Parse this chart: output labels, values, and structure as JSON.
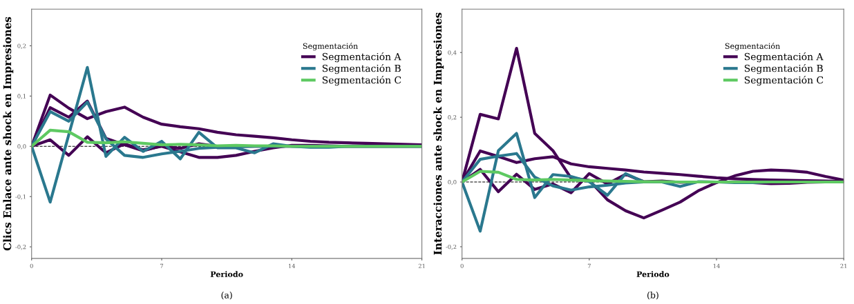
{
  "chart_data": [
    {
      "type": "line",
      "ylabel": "Clics Enlace ante shock en Impresiones",
      "xlabel": "Periodo",
      "legend_title": "Segmentación",
      "legend": "top right",
      "grid": false,
      "marker": "none",
      "line_style": "solid",
      "x": [
        0,
        1,
        2,
        3,
        4,
        5,
        6,
        7,
        8,
        9,
        10,
        11,
        12,
        13,
        14,
        15,
        16,
        17,
        18,
        19,
        20,
        21
      ],
      "xlim": [
        0,
        21
      ],
      "xticks": [
        0,
        7,
        14,
        21
      ],
      "ylim": [
        -0.223,
        0.273
      ],
      "yticks": [
        {
          "value": -0.2,
          "label": "-0,2"
        },
        {
          "value": -0.1,
          "label": "-0,1"
        },
        {
          "value": 0,
          "label": "0,0"
        },
        {
          "value": 0.1,
          "label": "0,1"
        },
        {
          "value": 0.2,
          "label": "0,2"
        }
      ],
      "ref_lines": [
        {
          "axis": "y",
          "value": 0,
          "color": "#000000",
          "line_style": "dashed"
        }
      ],
      "annotations": [
        "(a)"
      ],
      "series": [
        {
          "name": "Segmentación A",
          "color": "#440154",
          "values": [
            0,
            0.102,
            0.076,
            0.055,
            0.069,
            0.078,
            0.058,
            0.044,
            0.039,
            0.035,
            0.028,
            0.023,
            0.02,
            0.017,
            0.013,
            0.01,
            0.008,
            0.007,
            0.006,
            0.005,
            0.004,
            0.003
          ]
        },
        {
          "color": "#440154",
          "values": [
            0,
            0.077,
            0.058,
            0.09,
            0.016,
            0.003,
            -0.009,
            0.001,
            -0.004,
            0.005,
            0,
            0,
            0,
            0,
            0,
            0,
            0,
            0,
            0,
            0,
            0,
            0
          ]
        },
        {
          "color": "#440154",
          "values": [
            0,
            0.013,
            -0.018,
            0.019,
            -0.013,
            0.005,
            -0.007,
            0,
            -0.011,
            -0.022,
            -0.022,
            -0.018,
            -0.01,
            -0.003,
            0.002,
            0.002,
            0.001,
            0,
            0,
            0,
            0,
            0
          ]
        },
        {
          "name": "Segmentación B",
          "color": "#2a788e",
          "values": [
            0,
            -0.111,
            0.023,
            0.157,
            -0.02,
            0.018,
            -0.01,
            0.01,
            -0.025,
            0.028,
            -0.003,
            -0.003,
            -0.013,
            0.005,
            0,
            -0.002,
            -0.002,
            0,
            0,
            0,
            0,
            0
          ]
        },
        {
          "color": "#2a788e",
          "values": [
            0,
            0.069,
            0.05,
            0.088,
            0.015,
            -0.018,
            -0.022,
            -0.015,
            -0.01,
            -0.004,
            -0.002,
            -0.001,
            0,
            0,
            0,
            0,
            0,
            0,
            0,
            0,
            0,
            0
          ]
        },
        {
          "name": "Segmentación C",
          "color": "#5ec962",
          "values": [
            0,
            0.032,
            0.029,
            0.008,
            0.007,
            0.009,
            0.006,
            0.003,
            0.004,
            0.003,
            0.001,
            0.002,
            0.001,
            0.001,
            0,
            0,
            0,
            0,
            0,
            0,
            0,
            0
          ]
        }
      ]
    },
    {
      "type": "line",
      "ylabel": "Interacciones ante shock en Impresiones",
      "xlabel": "Periodo",
      "legend_title": "Segmentación",
      "legend": "top right",
      "grid": false,
      "marker": "none",
      "line_style": "solid",
      "x": [
        0,
        1,
        2,
        3,
        4,
        5,
        6,
        7,
        8,
        9,
        10,
        11,
        12,
        13,
        14,
        15,
        16,
        17,
        18,
        19,
        20,
        21
      ],
      "xlim": [
        0,
        21
      ],
      "xticks": [
        0,
        7,
        14,
        21
      ],
      "ylim": [
        -0.236,
        0.534
      ],
      "yticks": [
        {
          "value": -0.2,
          "label": "-0,2"
        },
        {
          "value": 0,
          "label": "0,0"
        },
        {
          "value": 0.2,
          "label": "0,2"
        },
        {
          "value": 0.4,
          "label": "0,4"
        }
      ],
      "ref_lines": [
        {
          "axis": "y",
          "value": 0,
          "color": "#000000",
          "line_style": "dashed"
        }
      ],
      "annotations": [
        "(b)"
      ],
      "series": [
        {
          "name": "Segmentación A",
          "color": "#440154",
          "values": [
            0,
            0.209,
            0.195,
            0.413,
            0.15,
            0.097,
            0.012,
            0.005,
            -0.055,
            -0.089,
            -0.111,
            -0.087,
            -0.062,
            -0.027,
            -0.002,
            0.019,
            0.033,
            0.037,
            0.035,
            0.03,
            0.017,
            0.006
          ]
        },
        {
          "color": "#440154",
          "values": [
            0,
            0.096,
            0.079,
            0.06,
            0.072,
            0.078,
            0.056,
            0.047,
            0.042,
            0.037,
            0.031,
            0.027,
            0.023,
            0.018,
            0.013,
            0.01,
            0.008,
            0.006,
            0.005,
            0.004,
            0.003,
            0.002
          ]
        },
        {
          "color": "#440154",
          "values": [
            0,
            0.039,
            -0.03,
            0.024,
            -0.023,
            -0.006,
            -0.033,
            0.026,
            -0.006,
            0.024,
            0.001,
            0.003,
            -0.001,
            0,
            0,
            0,
            -0.002,
            -0.005,
            -0.004,
            -0.001,
            0,
            0
          ]
        },
        {
          "name": "Segmentación B",
          "color": "#2a788e",
          "values": [
            0,
            -0.152,
            0.097,
            0.15,
            -0.048,
            0.023,
            0.017,
            0.001,
            -0.041,
            0.026,
            0,
            0,
            -0.014,
            0.001,
            0,
            -0.002,
            -0.002,
            0,
            0,
            null,
            null,
            null
          ]
        },
        {
          "color": "#2a788e",
          "values": [
            0,
            0.07,
            0.08,
            0.088,
            0.015,
            -0.012,
            -0.025,
            -0.015,
            -0.01,
            -0.003,
            0,
            0,
            0,
            0,
            0,
            0,
            0,
            0,
            0,
            null,
            null,
            null
          ]
        },
        {
          "name": "Segmentación C",
          "color": "#5ec962",
          "values": [
            0,
            0.033,
            0.03,
            0.008,
            0.006,
            0.008,
            0.006,
            0.004,
            0.003,
            0.002,
            0.001,
            0.001,
            0,
            0,
            0,
            0,
            0,
            0,
            0,
            0,
            0,
            0
          ]
        }
      ]
    }
  ]
}
